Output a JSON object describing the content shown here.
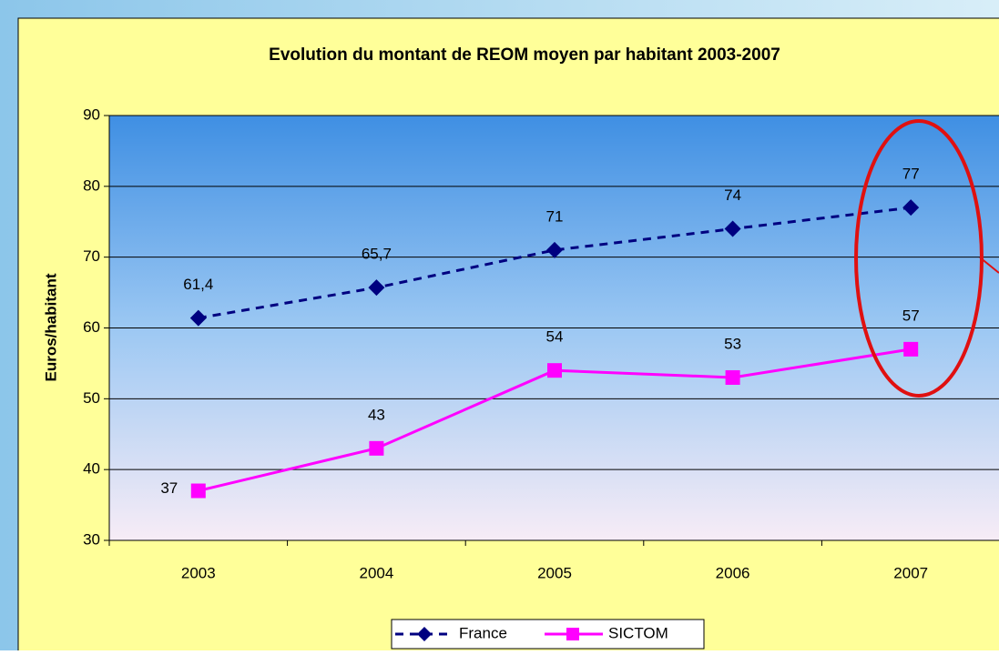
{
  "chart_data": {
    "type": "line",
    "title": "Evolution du montant de REOM moyen par habitant 2003-2007",
    "y_label": "Euros/habitant",
    "categories": [
      "2003",
      "2004",
      "2005",
      "2006",
      "2007"
    ],
    "series": [
      {
        "name": "France",
        "color": "#000080",
        "marker": "diamond",
        "dash": true,
        "values": [
          61.4,
          65.7,
          71,
          74,
          77
        ],
        "value_labels": [
          "61,4",
          "65,7",
          "71",
          "74",
          "77"
        ]
      },
      {
        "name": "SICTOM",
        "color": "#ff00ff",
        "marker": "square",
        "dash": false,
        "values": [
          37,
          43,
          54,
          53,
          57
        ],
        "value_labels": [
          "37",
          "43",
          "54",
          "53",
          "57"
        ]
      }
    ],
    "ylim": [
      30,
      90
    ],
    "yticks": [
      30,
      40,
      50,
      60,
      70,
      80,
      90
    ],
    "grid": true
  }
}
